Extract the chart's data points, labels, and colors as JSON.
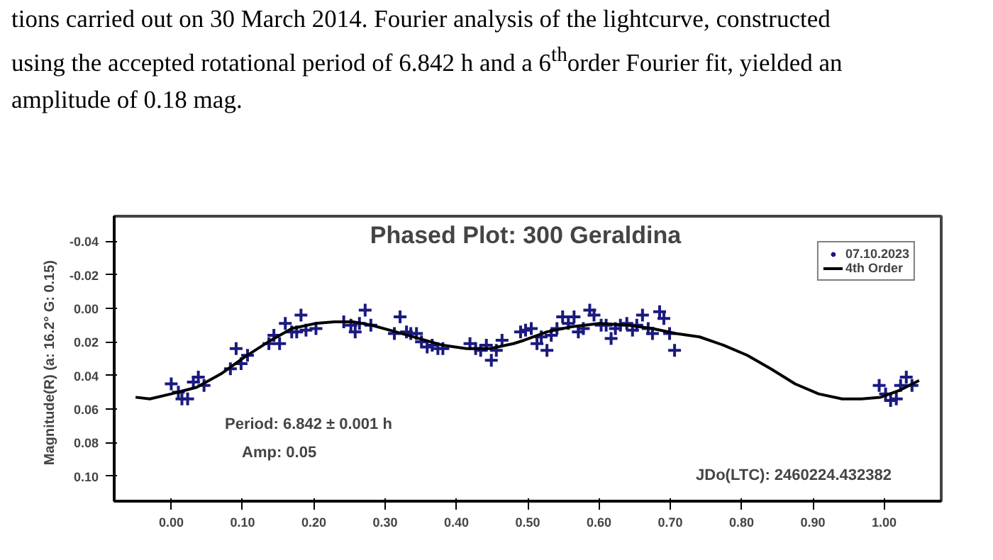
{
  "chart_data": {
    "type": "scatter",
    "title": "Phased Plot: 300 Geraldina",
    "ylabel": "Magnitude(R)  (a: 16.2°  G: 0.15)",
    "annotations": [
      "tions carried out on 30 March 2014. Fourier analysis of the lightcurve, constructed",
      "using the accepted rotational period of 6.842 h and a 6$^{th}$order Fourier fit, yielded an",
      "amplitude of 0.18 mag.",
      "Period: 6.842 ± 0.001 h",
      "Amp: 0.05",
      "JDo(LTC): 2460224.432382"
    ],
    "xlim": [
      -0.08,
      1.08
    ],
    "ylim": [
      0.115,
      -0.055
    ],
    "xticks": [
      {
        "value": 0,
        "label": "0.00"
      },
      {
        "value": 0.1,
        "label": "0.10"
      },
      {
        "value": 0.2,
        "label": "0.20"
      },
      {
        "value": 0.3,
        "label": "0.30"
      },
      {
        "value": 0.4,
        "label": "0.40"
      },
      {
        "value": 0.5,
        "label": "0.50"
      },
      {
        "value": 0.6,
        "label": "0.60"
      },
      {
        "value": 0.7,
        "label": "0.70"
      },
      {
        "value": 0.8,
        "label": "0.80"
      },
      {
        "value": 0.9,
        "label": "0.90"
      },
      {
        "value": 1,
        "label": "1.00"
      }
    ],
    "yticks": [
      {
        "value": -0.04,
        "label": "-0.04"
      },
      {
        "value": -0.02,
        "label": "-0.02"
      },
      {
        "value": 0,
        "label": "0.00"
      },
      {
        "value": 0.02,
        "label": "0.02"
      },
      {
        "value": 0.04,
        "label": "0.04"
      },
      {
        "value": 0.06,
        "label": "0.06"
      },
      {
        "value": 0.08,
        "label": "0.08"
      },
      {
        "value": 0.1,
        "label": "0.10"
      }
    ],
    "grid": false,
    "legend": "top right",
    "series": [
      {
        "name": "07.10.2023",
        "marker": "cross",
        "color": "#1a1a80",
        "x": [
          0.0,
          0.01,
          0.015,
          0.023,
          0.031,
          0.038,
          0.046,
          0.083,
          0.091,
          0.098,
          0.107,
          0.137,
          0.144,
          0.152,
          0.16,
          0.169,
          0.176,
          0.182,
          0.189,
          0.203,
          0.242,
          0.252,
          0.258,
          0.264,
          0.272,
          0.28,
          0.313,
          0.321,
          0.33,
          0.336,
          0.344,
          0.351,
          0.359,
          0.366,
          0.374,
          0.381,
          0.419,
          0.427,
          0.434,
          0.442,
          0.449,
          0.456,
          0.464,
          0.49,
          0.497,
          0.505,
          0.513,
          0.519,
          0.527,
          0.533,
          0.541,
          0.549,
          0.557,
          0.565,
          0.571,
          0.578,
          0.587,
          0.593,
          0.603,
          0.61,
          0.617,
          0.623,
          0.63,
          0.639,
          0.647,
          0.653,
          0.661,
          0.669,
          0.675,
          0.685,
          0.691,
          0.699,
          0.706,
          0.993,
          1.002,
          1.009,
          1.017,
          1.023,
          1.031,
          1.039
        ],
        "values": [
          0.045,
          0.05,
          0.054,
          0.054,
          0.044,
          0.041,
          0.046,
          0.036,
          0.024,
          0.033,
          0.028,
          0.021,
          0.016,
          0.021,
          0.009,
          0.014,
          0.014,
          0.004,
          0.013,
          0.012,
          0.008,
          0.01,
          0.014,
          0.009,
          0.001,
          0.01,
          0.015,
          0.005,
          0.014,
          0.015,
          0.015,
          0.02,
          0.023,
          0.022,
          0.024,
          0.024,
          0.021,
          0.024,
          0.025,
          0.022,
          0.031,
          0.025,
          0.019,
          0.014,
          0.013,
          0.012,
          0.021,
          0.017,
          0.025,
          0.016,
          0.012,
          0.005,
          0.009,
          0.005,
          0.014,
          0.012,
          0.001,
          0.004,
          0.01,
          0.01,
          0.018,
          0.012,
          0.01,
          0.009,
          0.013,
          0.01,
          0.004,
          0.012,
          0.015,
          0.002,
          0.006,
          0.015,
          0.025,
          0.046,
          0.051,
          0.055,
          0.054,
          0.046,
          0.041,
          0.046
        ]
      },
      {
        "name": "4th Order",
        "type": "line",
        "line_style": "solid",
        "color": "#000000",
        "x": [
          -0.05,
          -0.03,
          0.0,
          0.036,
          0.07,
          0.103,
          0.136,
          0.169,
          0.202,
          0.229,
          0.255,
          0.281,
          0.315,
          0.348,
          0.381,
          0.414,
          0.447,
          0.48,
          0.495,
          0.527,
          0.561,
          0.601,
          0.641,
          0.675,
          0.708,
          0.741,
          0.775,
          0.808,
          0.841,
          0.875,
          0.908,
          0.941,
          0.968,
          0.995,
          1.021,
          1.049
        ],
        "values": [
          0.053,
          0.054,
          0.051,
          0.047,
          0.039,
          0.029,
          0.02,
          0.012,
          0.009,
          0.008,
          0.008,
          0.01,
          0.014,
          0.018,
          0.022,
          0.024,
          0.024,
          0.021,
          0.019,
          0.014,
          0.011,
          0.009,
          0.01,
          0.012,
          0.015,
          0.017,
          0.022,
          0.028,
          0.036,
          0.045,
          0.051,
          0.054,
          0.054,
          0.053,
          0.049,
          0.043
        ]
      }
    ]
  }
}
